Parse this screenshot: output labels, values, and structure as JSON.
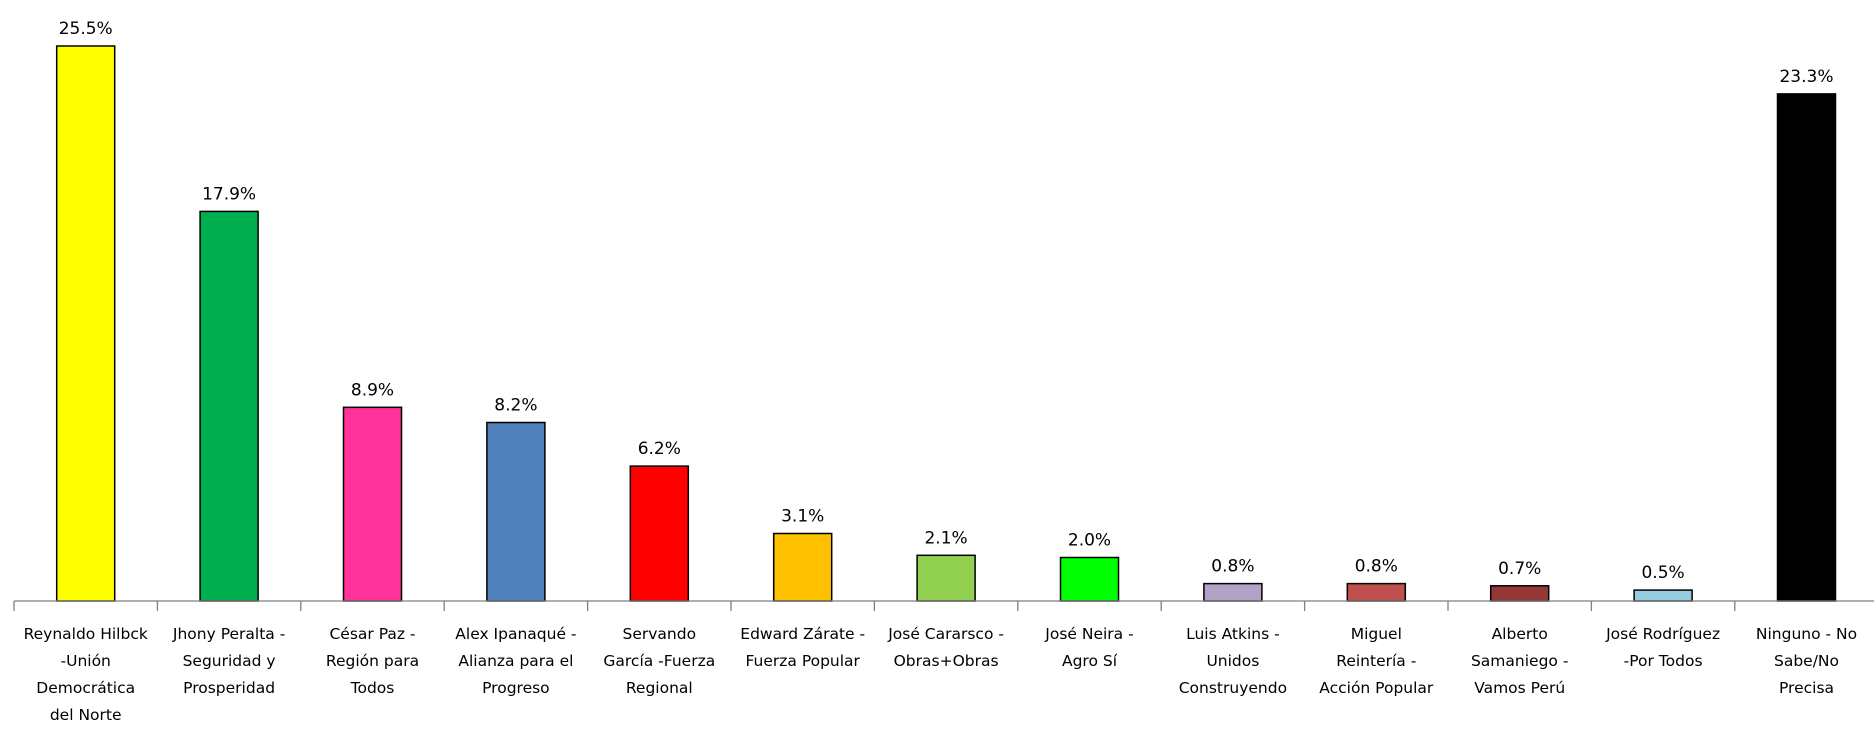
{
  "chart_data": {
    "type": "bar",
    "title": "",
    "xlabel": "",
    "ylabel": "",
    "ylim": [
      0,
      25.5
    ],
    "grid": false,
    "legend": "none",
    "categories": [
      [
        "Reynaldo Hilbck",
        "-Unión",
        "Democrática",
        "del Norte"
      ],
      [
        "Jhony Peralta -",
        "Seguridad y",
        "Prosperidad"
      ],
      [
        "César Paz -",
        "Región para",
        "Todos"
      ],
      [
        "Alex Ipanaqué -",
        "Alianza para el",
        "Progreso"
      ],
      [
        "Servando",
        "García -Fuerza",
        "Regional"
      ],
      [
        "Edward Zárate -",
        "Fuerza Popular"
      ],
      [
        "José Cararsco -",
        "Obras+Obras"
      ],
      [
        "José Neira -",
        "Agro Sí"
      ],
      [
        "Luis Atkins -",
        "Unidos",
        "Construyendo"
      ],
      [
        "Miguel",
        "Reintería -",
        "Acción Popular"
      ],
      [
        "Alberto",
        "Samaniego -",
        "Vamos Perú"
      ],
      [
        "José Rodríguez",
        "-Por Todos"
      ],
      [
        "Ninguno - No",
        "Sabe/No",
        "Precisa"
      ]
    ],
    "values": [
      25.5,
      17.9,
      8.9,
      8.2,
      6.2,
      3.1,
      2.1,
      2.0,
      0.8,
      0.8,
      0.7,
      0.5,
      23.3
    ],
    "value_labels": [
      "25.5%",
      "17.9%",
      "8.9%",
      "8.2%",
      "6.2%",
      "3.1%",
      "2.1%",
      "2.0%",
      "0.8%",
      "0.8%",
      "0.7%",
      "0.5%",
      "23.3%"
    ],
    "colors": [
      "#ffff00",
      "#00b050",
      "#ff3399",
      "#4f81bd",
      "#ff0000",
      "#ffc000",
      "#92d050",
      "#00ff00",
      "#b3a2c7",
      "#c0504d",
      "#953735",
      "#93cddd",
      "#000000"
    ]
  }
}
